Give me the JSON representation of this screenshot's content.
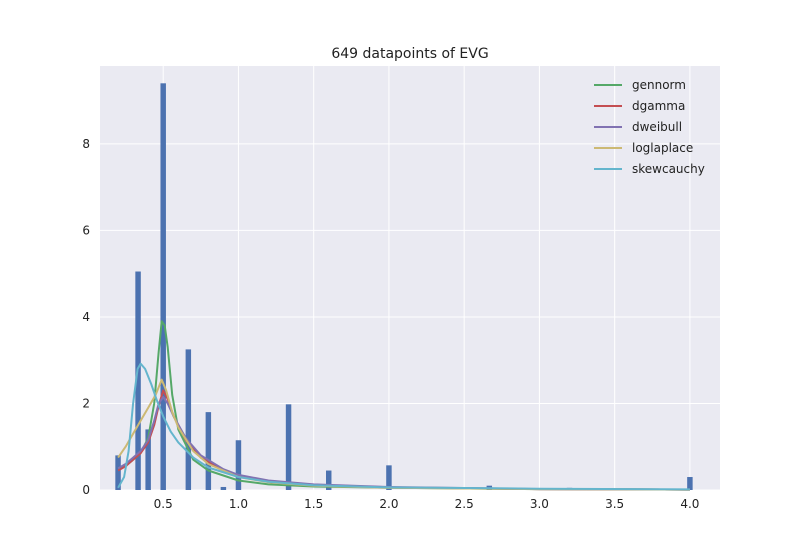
{
  "chart_data": {
    "type": "bar",
    "title": "649 datapoints of EVG",
    "xlabel": "",
    "ylabel": "",
    "xlim": [
      0.08,
      4.2
    ],
    "ylim": [
      0,
      9.8
    ],
    "grid": true,
    "legend_position": "top-right",
    "x_ticks": [
      0.5,
      1.0,
      1.5,
      2.0,
      2.5,
      3.0,
      3.5,
      4.0
    ],
    "x_tick_labels": [
      "0.5",
      "1.0",
      "1.5",
      "2.0",
      "2.5",
      "3.0",
      "3.5",
      "4.0"
    ],
    "y_ticks": [
      0,
      2,
      4,
      6,
      8
    ],
    "y_tick_labels": [
      "0",
      "2",
      "4",
      "6",
      "8"
    ],
    "histogram": {
      "color": "#4c72b0",
      "bin_width": 0.0363,
      "bins": [
        {
          "x": 0.2,
          "height": 0.8
        },
        {
          "x": 0.333,
          "height": 5.05
        },
        {
          "x": 0.4,
          "height": 1.4
        },
        {
          "x": 0.5,
          "height": 9.4
        },
        {
          "x": 0.667,
          "height": 3.25
        },
        {
          "x": 0.8,
          "height": 1.8
        },
        {
          "x": 0.9,
          "height": 0.07
        },
        {
          "x": 1.0,
          "height": 1.15
        },
        {
          "x": 1.333,
          "height": 1.98
        },
        {
          "x": 1.6,
          "height": 0.45
        },
        {
          "x": 2.0,
          "height": 0.57
        },
        {
          "x": 2.667,
          "height": 0.1
        },
        {
          "x": 3.2,
          "height": 0.05
        },
        {
          "x": 4.0,
          "height": 0.3
        }
      ]
    },
    "series": [
      {
        "name": "gennorm",
        "color": "#55a868",
        "points": [
          [
            0.2,
            0.5
          ],
          [
            0.25,
            0.55
          ],
          [
            0.3,
            0.7
          ],
          [
            0.35,
            0.85
          ],
          [
            0.4,
            1.2
          ],
          [
            0.44,
            2.0
          ],
          [
            0.47,
            3.2
          ],
          [
            0.49,
            3.9
          ],
          [
            0.51,
            3.8
          ],
          [
            0.53,
            3.3
          ],
          [
            0.56,
            2.2
          ],
          [
            0.6,
            1.4
          ],
          [
            0.7,
            0.7
          ],
          [
            0.8,
            0.45
          ],
          [
            1.0,
            0.22
          ],
          [
            1.2,
            0.13
          ],
          [
            1.5,
            0.08
          ],
          [
            2.0,
            0.05
          ],
          [
            3.0,
            0.02
          ],
          [
            4.0,
            0.01
          ]
        ]
      },
      {
        "name": "dgamma",
        "color": "#c44e52",
        "points": [
          [
            0.2,
            0.45
          ],
          [
            0.25,
            0.55
          ],
          [
            0.3,
            0.7
          ],
          [
            0.35,
            0.85
          ],
          [
            0.4,
            1.1
          ],
          [
            0.44,
            1.5
          ],
          [
            0.47,
            1.95
          ],
          [
            0.5,
            2.3
          ],
          [
            0.53,
            2.1
          ],
          [
            0.57,
            1.7
          ],
          [
            0.65,
            1.15
          ],
          [
            0.75,
            0.75
          ],
          [
            0.9,
            0.45
          ],
          [
            1.0,
            0.32
          ],
          [
            1.2,
            0.2
          ],
          [
            1.5,
            0.12
          ],
          [
            2.0,
            0.06
          ],
          [
            3.0,
            0.02
          ],
          [
            4.0,
            0.01
          ]
        ]
      },
      {
        "name": "dweibull",
        "color": "#8172b2",
        "points": [
          [
            0.2,
            0.5
          ],
          [
            0.25,
            0.6
          ],
          [
            0.3,
            0.75
          ],
          [
            0.35,
            0.9
          ],
          [
            0.4,
            1.15
          ],
          [
            0.44,
            1.6
          ],
          [
            0.47,
            2.0
          ],
          [
            0.5,
            2.15
          ],
          [
            0.53,
            2.0
          ],
          [
            0.57,
            1.7
          ],
          [
            0.65,
            1.2
          ],
          [
            0.75,
            0.8
          ],
          [
            0.9,
            0.48
          ],
          [
            1.0,
            0.35
          ],
          [
            1.2,
            0.22
          ],
          [
            1.5,
            0.13
          ],
          [
            2.0,
            0.07
          ],
          [
            3.0,
            0.02
          ],
          [
            4.0,
            0.01
          ]
        ]
      },
      {
        "name": "loglaplace",
        "color": "#ccb974",
        "points": [
          [
            0.2,
            0.75
          ],
          [
            0.25,
            1.0
          ],
          [
            0.3,
            1.3
          ],
          [
            0.35,
            1.6
          ],
          [
            0.4,
            1.9
          ],
          [
            0.45,
            2.2
          ],
          [
            0.49,
            2.55
          ],
          [
            0.52,
            2.3
          ],
          [
            0.56,
            1.8
          ],
          [
            0.6,
            1.45
          ],
          [
            0.7,
            0.9
          ],
          [
            0.8,
            0.6
          ],
          [
            1.0,
            0.3
          ],
          [
            1.2,
            0.18
          ],
          [
            1.5,
            0.1
          ],
          [
            2.0,
            0.05
          ],
          [
            3.0,
            0.02
          ],
          [
            4.0,
            0.01
          ]
        ]
      },
      {
        "name": "skewcauchy",
        "color": "#64b5cd",
        "points": [
          [
            0.2,
            0.05
          ],
          [
            0.24,
            0.3
          ],
          [
            0.27,
            0.9
          ],
          [
            0.3,
            2.0
          ],
          [
            0.33,
            2.8
          ],
          [
            0.35,
            2.92
          ],
          [
            0.38,
            2.8
          ],
          [
            0.42,
            2.45
          ],
          [
            0.46,
            2.05
          ],
          [
            0.5,
            1.7
          ],
          [
            0.55,
            1.35
          ],
          [
            0.6,
            1.1
          ],
          [
            0.7,
            0.75
          ],
          [
            0.8,
            0.52
          ],
          [
            1.0,
            0.3
          ],
          [
            1.2,
            0.19
          ],
          [
            1.5,
            0.11
          ],
          [
            2.0,
            0.06
          ],
          [
            3.0,
            0.03
          ],
          [
            4.0,
            0.015
          ]
        ]
      }
    ]
  }
}
